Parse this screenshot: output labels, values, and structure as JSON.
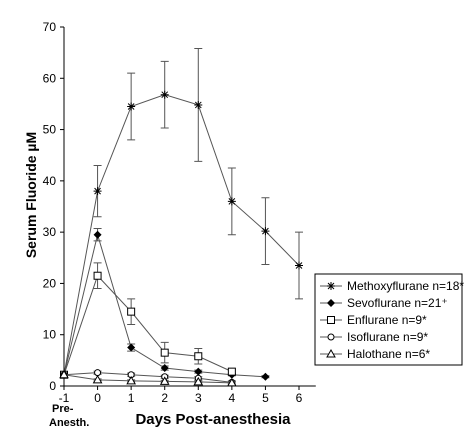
{
  "chart_data": {
    "type": "line",
    "xlabel": "Days Post-anesthesia",
    "ylabel": "Serum Fluoride µM",
    "xlim": [
      -1,
      6.5
    ],
    "ylim": [
      0,
      70
    ],
    "x_ticks": [
      {
        "value": -1,
        "label": "-1"
      },
      {
        "value": 0,
        "label": "0"
      },
      {
        "value": 1,
        "label": "1"
      },
      {
        "value": 2,
        "label": "2"
      },
      {
        "value": 3,
        "label": "3"
      },
      {
        "value": 4,
        "label": "4"
      },
      {
        "value": 5,
        "label": "5"
      },
      {
        "value": 6,
        "label": "6"
      }
    ],
    "y_ticks": [
      0,
      10,
      20,
      30,
      40,
      50,
      60,
      70
    ],
    "pre_label_line1": "Pre-",
    "pre_label_line2": "Anesth.",
    "grid": false,
    "legend_position": "bottom-right",
    "series": [
      {
        "name": "Methoxyflurane n=18*",
        "marker": "asterisk",
        "x": [
          -1,
          0,
          1,
          2,
          3,
          4,
          5,
          6
        ],
        "y": [
          2.2,
          38,
          54.5,
          56.8,
          54.8,
          36,
          30.2,
          23.5
        ],
        "err": [
          0,
          5,
          6.5,
          6.5,
          11,
          6.5,
          6.5,
          6.5
        ]
      },
      {
        "name": "Sevoflurane n=21⁺",
        "marker": "diamond",
        "x": [
          -1,
          0,
          1,
          2,
          3,
          4,
          5
        ],
        "y": [
          2.2,
          29.5,
          7.5,
          3.5,
          2.8,
          2.2,
          1.8
        ],
        "err": [
          0,
          1.2,
          0.7,
          0.4,
          0.3,
          0.2,
          0.2
        ]
      },
      {
        "name": "Enflurane n=9*",
        "marker": "square",
        "x": [
          -1,
          0,
          1,
          2,
          3,
          4
        ],
        "y": [
          2.2,
          21.5,
          14.5,
          6.5,
          5.8,
          2.8
        ],
        "err": [
          0,
          2.5,
          2.5,
          2,
          1.5,
          0.5
        ]
      },
      {
        "name": "Isoflurane n=9*",
        "marker": "circle",
        "x": [
          -1,
          0,
          1,
          2,
          3,
          4
        ],
        "y": [
          2.2,
          2.6,
          2.2,
          1.8,
          1.5,
          0.7
        ],
        "err": [
          0,
          0.3,
          0.3,
          0.3,
          0.3,
          0.3
        ]
      },
      {
        "name": "Halothane n=6*",
        "marker": "triangle",
        "x": [
          -1,
          0,
          1,
          2,
          3,
          4
        ],
        "y": [
          2.2,
          1.2,
          1.0,
          0.9,
          0.8,
          0.6
        ],
        "err": [
          0,
          0.2,
          0.2,
          0.2,
          0.2,
          0.2
        ]
      }
    ]
  }
}
